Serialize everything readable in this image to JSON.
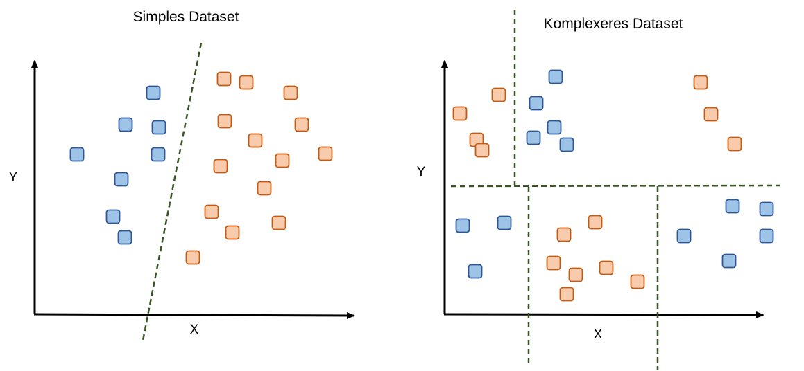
{
  "colors": {
    "blue_fill": "#9dc3e6",
    "blue_stroke": "#2f5597",
    "orange_fill": "#f8cbad",
    "orange_stroke": "#c55a11",
    "boundary": "#375623",
    "axis": "#000000"
  },
  "left_panel": {
    "title": "Simples Dataset",
    "xlabel": "X",
    "ylabel": "Y",
    "blue_points": [
      [
        221,
        134
      ],
      [
        181,
        180
      ],
      [
        229,
        184
      ],
      [
        111,
        223
      ],
      [
        228,
        223
      ],
      [
        175,
        259
      ],
      [
        163,
        313
      ],
      [
        180,
        343
      ]
    ],
    "orange_points": [
      [
        323,
        114
      ],
      [
        355,
        119
      ],
      [
        419,
        134
      ],
      [
        324,
        175
      ],
      [
        435,
        180
      ],
      [
        368,
        203
      ],
      [
        469,
        222
      ],
      [
        407,
        232
      ],
      [
        318,
        240
      ],
      [
        381,
        272
      ],
      [
        305,
        306
      ],
      [
        402,
        322
      ],
      [
        335,
        336
      ],
      [
        278,
        372
      ]
    ],
    "boundaries": [
      [
        [
          290,
          62
        ],
        [
          206,
          492
        ]
      ]
    ]
  },
  "right_panel": {
    "title": "Komplexeres Dataset",
    "xlabel": "X",
    "ylabel": "Y",
    "blue_points": [
      [
        801,
        111
      ],
      [
        773,
        149
      ],
      [
        799,
        184
      ],
      [
        769,
        199
      ],
      [
        817,
        209
      ],
      [
        667,
        326
      ],
      [
        727,
        322
      ],
      [
        685,
        392
      ],
      [
        986,
        341
      ],
      [
        1056,
        298
      ],
      [
        1105,
        302
      ],
      [
        1105,
        341
      ],
      [
        1051,
        377
      ]
    ],
    "orange_points": [
      [
        719,
        137
      ],
      [
        663,
        164
      ],
      [
        687,
        202
      ],
      [
        695,
        217
      ],
      [
        1010,
        119
      ],
      [
        1025,
        165
      ],
      [
        1059,
        208
      ],
      [
        858,
        321
      ],
      [
        813,
        339
      ],
      [
        798,
        380
      ],
      [
        830,
        397
      ],
      [
        874,
        387
      ],
      [
        919,
        407
      ],
      [
        817,
        425
      ]
    ],
    "boundaries": [
      [
        [
          742,
          14
        ],
        [
          742,
          268
        ]
      ],
      [
        [
          650,
          269
        ],
        [
          1125,
          268
        ]
      ],
      [
        [
          762,
          270
        ],
        [
          762,
          524
        ]
      ],
      [
        [
          948,
          269
        ],
        [
          948,
          534
        ]
      ]
    ]
  }
}
